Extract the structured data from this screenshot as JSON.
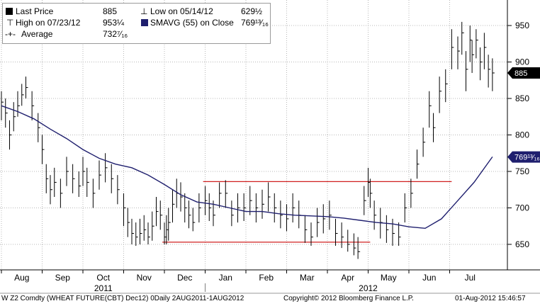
{
  "chart_data": {
    "type": "line",
    "title": "",
    "security": "W Z2 Comdty (WHEAT FUTURE(CBT) Dec12)",
    "y_ticks": [
      650,
      700,
      750,
      800,
      850,
      900,
      950
    ],
    "ylim": [
      615,
      985
    ],
    "x_month_labels": [
      "Aug",
      "Sep",
      "Oct",
      "Nov",
      "Dec",
      "Jan",
      "Feb",
      "Mar",
      "Apr",
      "May",
      "Jun",
      "Jul"
    ],
    "x_year_labels": [
      "2011",
      "2012"
    ],
    "legend": {
      "last_price_label": "Last Price",
      "last_price_value": "885",
      "high_label": "High on 07/23/12",
      "high_value": "953¼",
      "average_label": "Average",
      "average_value": "732⁷⁄₁₆",
      "low_label": "Low on 05/14/12",
      "low_value": "629½",
      "smavg_label": "SMAVG (55) on Close",
      "smavg_value": "769¹³⁄₁₆"
    },
    "last_price_tag": "885",
    "smavg_tag": "769¹³⁄₁₆",
    "series": [
      {
        "name": "Last Price",
        "style": "ohlc",
        "color": "#000000",
        "x_month_index": [
          0.0,
          0.1,
          0.2,
          0.3,
          0.4,
          0.5,
          0.6,
          0.75,
          0.9,
          1.0,
          1.1,
          1.2,
          1.3,
          1.45,
          1.6,
          1.75,
          1.9,
          2.0,
          2.1,
          2.25,
          2.4,
          2.55,
          2.7,
          2.85,
          3.0,
          3.1,
          3.2,
          3.3,
          3.4,
          3.5,
          3.6,
          3.7,
          3.8,
          3.9,
          4.0,
          4.05,
          4.1,
          4.2,
          4.3,
          4.4,
          4.5,
          4.6,
          4.7,
          4.85,
          5.0,
          5.1,
          5.2,
          5.35,
          5.5,
          5.65,
          5.8,
          5.95,
          6.1,
          6.25,
          6.4,
          6.55,
          6.7,
          6.85,
          7.0,
          7.15,
          7.3,
          7.45,
          7.6,
          7.75,
          7.9,
          8.05,
          8.2,
          8.35,
          8.5,
          8.65,
          8.75,
          8.9,
          9.0,
          9.05,
          9.15,
          9.3,
          9.45,
          9.6,
          9.75,
          9.9,
          10.05,
          10.2,
          10.35,
          10.5,
          10.6,
          10.75,
          10.9,
          11.05,
          11.2,
          11.3,
          11.4,
          11.5,
          11.55,
          11.65,
          11.75,
          11.85,
          11.95,
          12.05
        ],
        "close": [
          845,
          830,
          800,
          825,
          840,
          855,
          865,
          840,
          810,
          780,
          740,
          725,
          735,
          720,
          750,
          740,
          730,
          750,
          735,
          720,
          745,
          755,
          740,
          725,
          700,
          680,
          665,
          660,
          665,
          670,
          660,
          675,
          695,
          690,
          660,
          670,
          680,
          705,
          720,
          715,
          700,
          690,
          680,
          700,
          710,
          700,
          690,
          720,
          720,
          690,
          700,
          700,
          710,
          700,
          705,
          715,
          700,
          690,
          685,
          700,
          690,
          670,
          660,
          680,
          685,
          690,
          665,
          660,
          650,
          645,
          640,
          710,
          735,
          720,
          690,
          680,
          670,
          665,
          660,
          700,
          720,
          760,
          790,
          840,
          810,
          860,
          870,
          920,
          915,
          940,
          890,
          930,
          910,
          930,
          900,
          920,
          890,
          885
        ],
        "low": [
          820,
          810,
          780,
          805,
          825,
          840,
          850,
          820,
          790,
          760,
          720,
          705,
          715,
          700,
          730,
          720,
          715,
          730,
          715,
          700,
          725,
          735,
          720,
          705,
          675,
          660,
          650,
          648,
          650,
          655,
          650,
          655,
          675,
          670,
          650,
          650,
          655,
          680,
          700,
          695,
          680,
          672,
          668,
          680,
          690,
          682,
          675,
          700,
          700,
          675,
          680,
          682,
          690,
          680,
          685,
          695,
          680,
          672,
          668,
          680,
          672,
          652,
          648,
          660,
          665,
          670,
          648,
          645,
          640,
          635,
          630,
          690,
          715,
          700,
          670,
          658,
          652,
          648,
          648,
          680,
          700,
          740,
          770,
          810,
          790,
          830,
          845,
          890,
          890,
          910,
          860,
          900,
          885,
          905,
          875,
          890,
          865,
          860
        ],
        "high": [
          860,
          850,
          820,
          845,
          860,
          870,
          880,
          860,
          830,
          800,
          760,
          745,
          755,
          740,
          770,
          760,
          750,
          770,
          755,
          740,
          765,
          775,
          760,
          745,
          720,
          700,
          685,
          680,
          685,
          690,
          680,
          695,
          715,
          710,
          680,
          690,
          700,
          725,
          740,
          735,
          720,
          710,
          700,
          720,
          730,
          720,
          710,
          735,
          738,
          710,
          720,
          720,
          730,
          720,
          725,
          735,
          720,
          710,
          705,
          720,
          710,
          690,
          680,
          700,
          705,
          710,
          685,
          680,
          670,
          665,
          660,
          730,
          755,
          740,
          710,
          700,
          690,
          685,
          680,
          720,
          740,
          780,
          810,
          860,
          830,
          880,
          890,
          945,
          935,
          955,
          915,
          950,
          930,
          945,
          920,
          940,
          910,
          905
        ]
      },
      {
        "name": "SMAVG (55) on Close",
        "style": "line",
        "color": "#1f1f6e",
        "x_month_index": [
          0.0,
          0.4,
          0.8,
          1.2,
          1.6,
          2.0,
          2.4,
          2.8,
          3.2,
          3.6,
          4.0,
          4.4,
          4.8,
          5.2,
          5.6,
          6.0,
          6.4,
          6.8,
          7.2,
          7.6,
          8.0,
          8.4,
          8.8,
          9.2,
          9.6,
          10.0,
          10.4,
          10.8,
          11.2,
          11.6,
          12.05
        ],
        "values": [
          840,
          832,
          822,
          808,
          795,
          780,
          768,
          760,
          755,
          745,
          732,
          718,
          708,
          705,
          700,
          695,
          695,
          692,
          690,
          689,
          688,
          686,
          683,
          680,
          678,
          674,
          672,
          685,
          710,
          735,
          770
        ]
      }
    ],
    "annotations": [
      {
        "type": "hline",
        "color": "#d02020",
        "x_start": 4.95,
        "x_end": 11.05,
        "y": 736
      },
      {
        "type": "hline",
        "color": "#d02020",
        "x_start": 3.95,
        "x_end": 9.05,
        "y": 653
      }
    ]
  },
  "footer": {
    "left": "W Z2 Comdty (WHEAT FUTURE(CBT) Dec12) 0Daily 2AUG2011-1AUG2012",
    "center": "Copyright© 2012 Bloomberg Finance L.P.",
    "right": "01-Aug-2012 15:46:57"
  }
}
